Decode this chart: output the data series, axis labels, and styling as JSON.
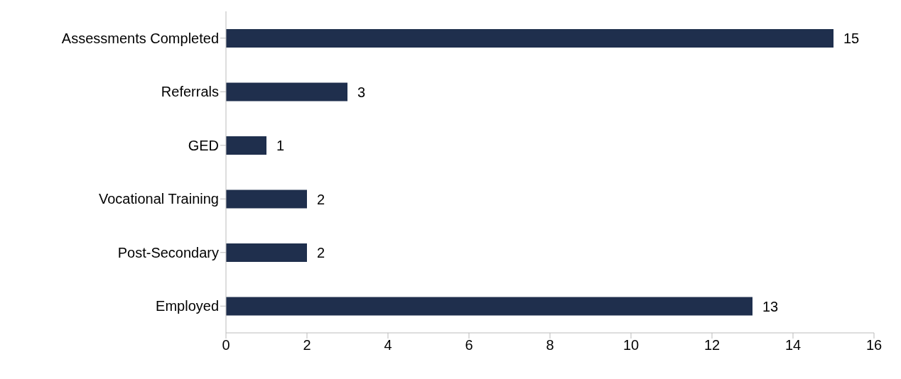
{
  "chart_data": {
    "type": "bar",
    "orientation": "horizontal",
    "categories": [
      "Assessments Completed",
      "Referrals",
      "GED",
      "Vocational Training",
      "Post-Secondary",
      "Employed"
    ],
    "values": [
      15,
      3,
      1,
      2,
      2,
      13
    ],
    "color": "#1f2f4d",
    "xlim": [
      0,
      16
    ],
    "xticks": [
      0,
      2,
      4,
      6,
      8,
      10,
      12,
      14,
      16
    ],
    "grid": false,
    "data_labels": true
  }
}
